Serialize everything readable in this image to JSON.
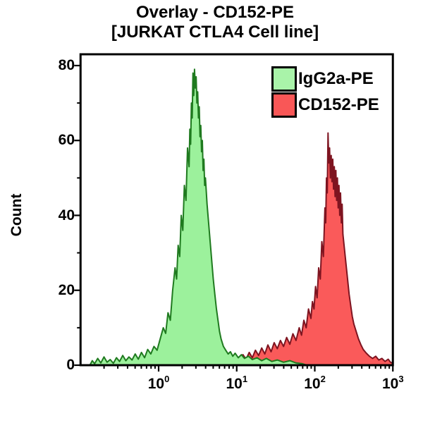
{
  "title": {
    "line1": "Overlay - CD152-PE",
    "line2": "[JURKAT CTLA4 Cell line]"
  },
  "legend": {
    "items": [
      {
        "label": "IgG2a-PE",
        "swatch_fill": "#a9f3a9",
        "swatch_border": "#000000"
      },
      {
        "label": "CD152-PE",
        "swatch_fill": "#f95757",
        "swatch_border": "#000000"
      }
    ]
  },
  "chart_data": {
    "type": "area",
    "subtype": "flow-cytometry-histogram-overlay",
    "title": "Overlay - CD152-PE [JURKAT CTLA4 Cell line]",
    "x_scale": "log10",
    "x_range_log": [
      -1,
      3
    ],
    "x_tick_labels": [
      {
        "base": "10",
        "exp": "0"
      },
      {
        "base": "10",
        "exp": "1"
      },
      {
        "base": "10",
        "exp": "2"
      },
      {
        "base": "10",
        "exp": "3"
      }
    ],
    "x_tick_exponents": [
      0,
      1,
      2,
      3
    ],
    "x_minor_tick_decades": [
      -1,
      0,
      1,
      2
    ],
    "y_axis_label": "Count",
    "x_axis_label": "",
    "y_range": [
      0,
      83
    ],
    "y_ticks_major": [
      0,
      20,
      40,
      60,
      80
    ],
    "y_ticks_minor": [
      10,
      30,
      50,
      70
    ],
    "grid": false,
    "legend_position": "top-right-inside",
    "frame": true,
    "axis_color": "#000000",
    "series": [
      {
        "name": "IgG2a-PE",
        "fill": "#9cf19c",
        "stroke": "#1f7a1f",
        "peak_x": 2.9,
        "peak_count": 79,
        "draw_order": 2,
        "points_log_count": [
          [
            -0.88,
            0
          ],
          [
            -0.85,
            1.2
          ],
          [
            -0.82,
            0.4
          ],
          [
            -0.78,
            1.8
          ],
          [
            -0.74,
            0.6
          ],
          [
            -0.7,
            2.2
          ],
          [
            -0.66,
            0.8
          ],
          [
            -0.62,
            1.5
          ],
          [
            -0.58,
            0.5
          ],
          [
            -0.54,
            2.0
          ],
          [
            -0.5,
            1.0
          ],
          [
            -0.46,
            2.6
          ],
          [
            -0.42,
            1.2
          ],
          [
            -0.38,
            2.2
          ],
          [
            -0.34,
            1.4
          ],
          [
            -0.3,
            3.0
          ],
          [
            -0.26,
            1.6
          ],
          [
            -0.22,
            3.4
          ],
          [
            -0.18,
            2.0
          ],
          [
            -0.14,
            4.2
          ],
          [
            -0.1,
            3.0
          ],
          [
            -0.06,
            5.0
          ],
          [
            -0.02,
            4.0
          ],
          [
            0.02,
            7.0
          ],
          [
            0.06,
            10
          ],
          [
            0.09,
            8.5
          ],
          [
            0.12,
            14
          ],
          [
            0.15,
            12
          ],
          [
            0.18,
            20
          ],
          [
            0.21,
            26
          ],
          [
            0.23,
            23
          ],
          [
            0.25,
            32
          ],
          [
            0.27,
            29
          ],
          [
            0.29,
            40
          ],
          [
            0.31,
            36
          ],
          [
            0.33,
            48
          ],
          [
            0.35,
            44
          ],
          [
            0.37,
            58
          ],
          [
            0.39,
            53
          ],
          [
            0.4,
            63
          ],
          [
            0.41,
            59
          ],
          [
            0.42,
            70
          ],
          [
            0.43,
            66
          ],
          [
            0.44,
            78
          ],
          [
            0.45,
            72
          ],
          [
            0.46,
            79
          ],
          [
            0.47,
            74
          ],
          [
            0.48,
            77
          ],
          [
            0.49,
            70
          ],
          [
            0.5,
            73
          ],
          [
            0.51,
            66
          ],
          [
            0.52,
            69
          ],
          [
            0.53,
            61
          ],
          [
            0.54,
            64
          ],
          [
            0.55,
            57
          ],
          [
            0.56,
            60
          ],
          [
            0.57,
            52
          ],
          [
            0.58,
            55
          ],
          [
            0.59,
            48
          ],
          [
            0.6,
            50
          ],
          [
            0.62,
            43
          ],
          [
            0.64,
            38
          ],
          [
            0.66,
            33
          ],
          [
            0.68,
            28
          ],
          [
            0.7,
            23
          ],
          [
            0.72,
            19
          ],
          [
            0.74,
            15
          ],
          [
            0.76,
            12
          ],
          [
            0.78,
            9
          ],
          [
            0.8,
            7
          ],
          [
            0.83,
            5
          ],
          [
            0.86,
            4
          ],
          [
            0.89,
            3
          ],
          [
            0.92,
            3.6
          ],
          [
            0.95,
            2.4
          ],
          [
            0.98,
            3.2
          ],
          [
            1.02,
            2.0
          ],
          [
            1.06,
            2.8
          ],
          [
            1.1,
            1.8
          ],
          [
            1.15,
            2.4
          ],
          [
            1.2,
            1.5
          ],
          [
            1.26,
            2.0
          ],
          [
            1.32,
            1.2
          ],
          [
            1.38,
            1.8
          ],
          [
            1.45,
            1.0
          ],
          [
            1.52,
            1.4
          ],
          [
            1.6,
            0.8
          ],
          [
            1.68,
            1.2
          ],
          [
            1.76,
            0.6
          ],
          [
            1.84,
            0.4
          ],
          [
            1.9,
            0
          ]
        ]
      },
      {
        "name": "CD152-PE",
        "fill": "#fa5a5a",
        "stroke": "#7e1420",
        "peak_x": 148,
        "peak_count": 62,
        "draw_order": 1,
        "points_log_count": [
          [
            0.8,
            0
          ],
          [
            0.84,
            0.8
          ],
          [
            0.88,
            0.4
          ],
          [
            0.92,
            1.4
          ],
          [
            0.96,
            0.8
          ],
          [
            1.0,
            2.2
          ],
          [
            1.04,
            1.2
          ],
          [
            1.08,
            2.8
          ],
          [
            1.12,
            1.6
          ],
          [
            1.16,
            3.4
          ],
          [
            1.2,
            2.0
          ],
          [
            1.24,
            4.0
          ],
          [
            1.28,
            2.6
          ],
          [
            1.32,
            4.6
          ],
          [
            1.36,
            3.0
          ],
          [
            1.4,
            5.4
          ],
          [
            1.44,
            3.6
          ],
          [
            1.48,
            6.0
          ],
          [
            1.52,
            4.4
          ],
          [
            1.56,
            6.6
          ],
          [
            1.6,
            5.0
          ],
          [
            1.64,
            7.4
          ],
          [
            1.68,
            5.6
          ],
          [
            1.72,
            8.4
          ],
          [
            1.76,
            6.6
          ],
          [
            1.8,
            10
          ],
          [
            1.83,
            8.0
          ],
          [
            1.86,
            12
          ],
          [
            1.89,
            10
          ],
          [
            1.92,
            15
          ],
          [
            1.95,
            12.5
          ],
          [
            1.97,
            17
          ],
          [
            1.99,
            15
          ],
          [
            2.01,
            21
          ],
          [
            2.03,
            18
          ],
          [
            2.05,
            26
          ],
          [
            2.07,
            23
          ],
          [
            2.09,
            33
          ],
          [
            2.11,
            29
          ],
          [
            2.13,
            42
          ],
          [
            2.14,
            38
          ],
          [
            2.15,
            50
          ],
          [
            2.16,
            46
          ],
          [
            2.17,
            62
          ],
          [
            2.18,
            54
          ],
          [
            2.19,
            58
          ],
          [
            2.2,
            50
          ],
          [
            2.21,
            56
          ],
          [
            2.22,
            49
          ],
          [
            2.23,
            55
          ],
          [
            2.24,
            47
          ],
          [
            2.25,
            53
          ],
          [
            2.26,
            45
          ],
          [
            2.27,
            52
          ],
          [
            2.28,
            44
          ],
          [
            2.29,
            50
          ],
          [
            2.3,
            42
          ],
          [
            2.31,
            48
          ],
          [
            2.32,
            40
          ],
          [
            2.33,
            46
          ],
          [
            2.34,
            38
          ],
          [
            2.35,
            43
          ],
          [
            2.36,
            35
          ],
          [
            2.38,
            31
          ],
          [
            2.4,
            27
          ],
          [
            2.42,
            23
          ],
          [
            2.44,
            19
          ],
          [
            2.46,
            16
          ],
          [
            2.48,
            13
          ],
          [
            2.5,
            11
          ],
          [
            2.53,
            9.0
          ],
          [
            2.56,
            7.0
          ],
          [
            2.59,
            5.5
          ],
          [
            2.62,
            4.2
          ],
          [
            2.66,
            3.2
          ],
          [
            2.7,
            2.4
          ],
          [
            2.74,
            1.8
          ],
          [
            2.78,
            2.4
          ],
          [
            2.82,
            1.4
          ],
          [
            2.86,
            1.8
          ],
          [
            2.9,
            1.0
          ],
          [
            2.94,
            1.6
          ],
          [
            2.97,
            0.8
          ],
          [
            3.0,
            0.5
          ]
        ]
      }
    ]
  }
}
